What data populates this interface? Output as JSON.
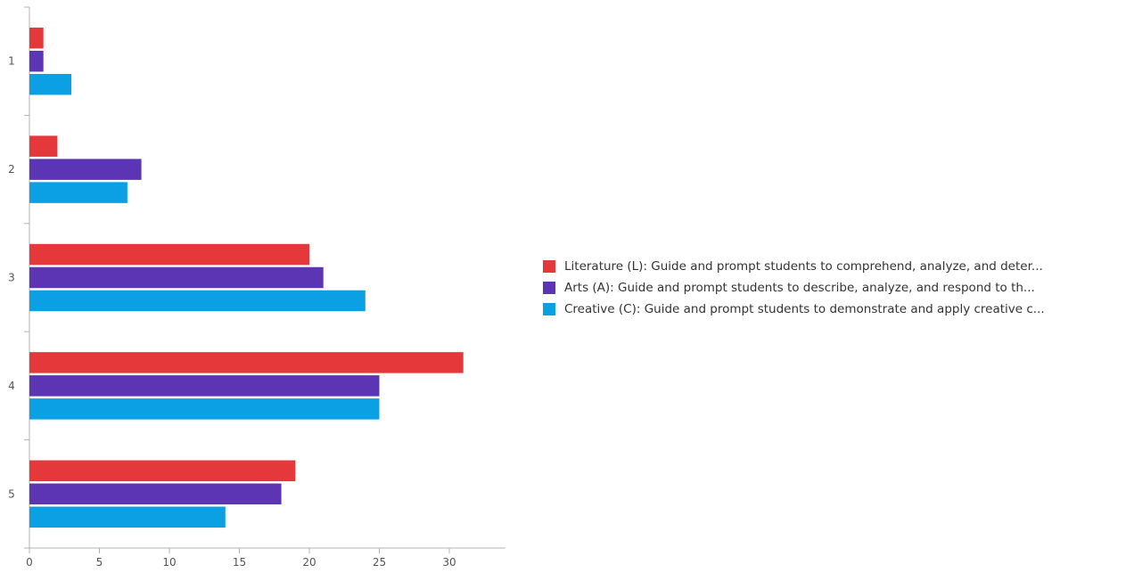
{
  "colors": {
    "literature": "#e5383b",
    "arts": "#5c35b5",
    "creative": "#0aa0e3",
    "axis": "#b3b3b3",
    "tick_text": "#555555"
  },
  "chart_data": {
    "type": "bar",
    "orientation": "horizontal",
    "categories": [
      "1",
      "2",
      "3",
      "4",
      "5"
    ],
    "series": [
      {
        "name": "Literature (L): Guide and prompt students to comprehend, analyze, and deter...",
        "color": "#e5383b",
        "values": [
          1,
          2,
          20,
          31,
          19
        ]
      },
      {
        "name": "Arts (A): Guide and prompt students to describe, analyze, and respond to th...",
        "color": "#5c35b5",
        "values": [
          1,
          8,
          21,
          25,
          18
        ]
      },
      {
        "name": "Creative (C): Guide and prompt students to demonstrate and apply creative c...",
        "color": "#0aa0e3",
        "values": [
          3,
          7,
          24,
          25,
          14
        ]
      }
    ],
    "x_ticks": [
      0,
      5,
      10,
      15,
      20,
      25,
      30
    ],
    "xlim": [
      0,
      34
    ],
    "title": "",
    "xlabel": "",
    "ylabel": "",
    "grid": false,
    "legend_position": "right"
  }
}
